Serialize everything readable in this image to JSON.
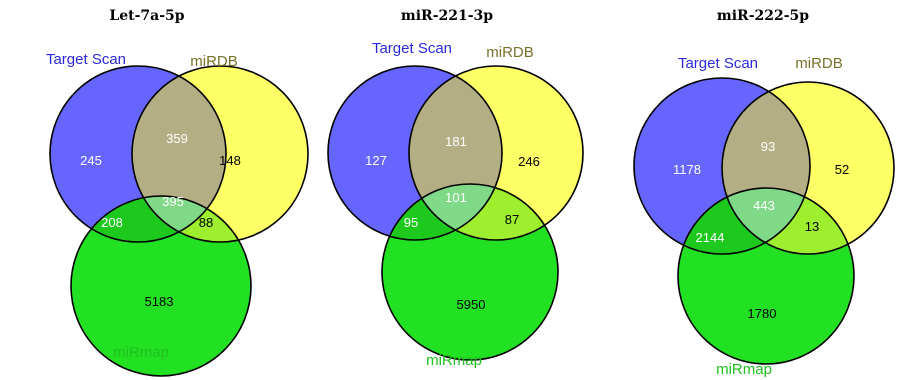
{
  "colors": {
    "target_scan": "#6666ff",
    "mirdb": "#ffff66",
    "mirmap": "#22e022",
    "ts_mirdb": "#b3ae84",
    "ts_mirmap": "#1ec91e",
    "mirdb_mirmap": "#9ef02e",
    "all_three": "#7fd986",
    "label_target_scan": "#2a2adc",
    "label_mirdb": "#77702a",
    "label_mirmap": "#20c020"
  },
  "diagrams": [
    {
      "title": "Let-7a-5p",
      "labels": {
        "target_scan": "Target Scan",
        "mirdb": "miRDB",
        "mirmap": "miRmap"
      },
      "counts": {
        "target_scan_only": "245",
        "mirdb_only": "148",
        "mirmap_only": "5183",
        "target_scan_mirdb": "359",
        "target_scan_mirmap": "208",
        "mirdb_mirmap": "88",
        "all_three": "395"
      }
    },
    {
      "title": "miR-221-3p",
      "labels": {
        "target_scan": "Target Scan",
        "mirdb": "miRDB",
        "mirmap": "miRmap"
      },
      "counts": {
        "target_scan_only": "127",
        "mirdb_only": "246",
        "mirmap_only": "5950",
        "target_scan_mirdb": "181",
        "target_scan_mirmap": "95",
        "mirdb_mirmap": "87",
        "all_three": "101"
      }
    },
    {
      "title": "miR-222-5p",
      "labels": {
        "target_scan": "Target Scan",
        "mirdb": "miRDB",
        "mirmap": "miRmap"
      },
      "counts": {
        "target_scan_only": "1178",
        "mirdb_only": "52",
        "mirmap_only": "1780",
        "target_scan_mirdb": "93",
        "target_scan_mirmap": "2144",
        "mirdb_mirmap": "13",
        "all_three": "443"
      }
    }
  ]
}
